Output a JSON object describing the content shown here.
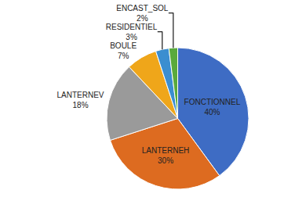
{
  "chart_data": {
    "type": "pie",
    "categories": [
      "FONCTIONNEL",
      "LANTERNEH",
      "LANTERNEV",
      "BOULE",
      "RESIDENTIEL",
      "ENCAST_SOL"
    ],
    "values": [
      40,
      30,
      18,
      7,
      3,
      2
    ],
    "value_labels": [
      "40%",
      "30%",
      "18%",
      "7%",
      "3%",
      "2%"
    ],
    "colors": [
      "#3e6cc4",
      "#dd6b20",
      "#9a9a9a",
      "#efa61a",
      "#3b8ed0",
      "#5aaa3c"
    ],
    "data_labels": true
  }
}
